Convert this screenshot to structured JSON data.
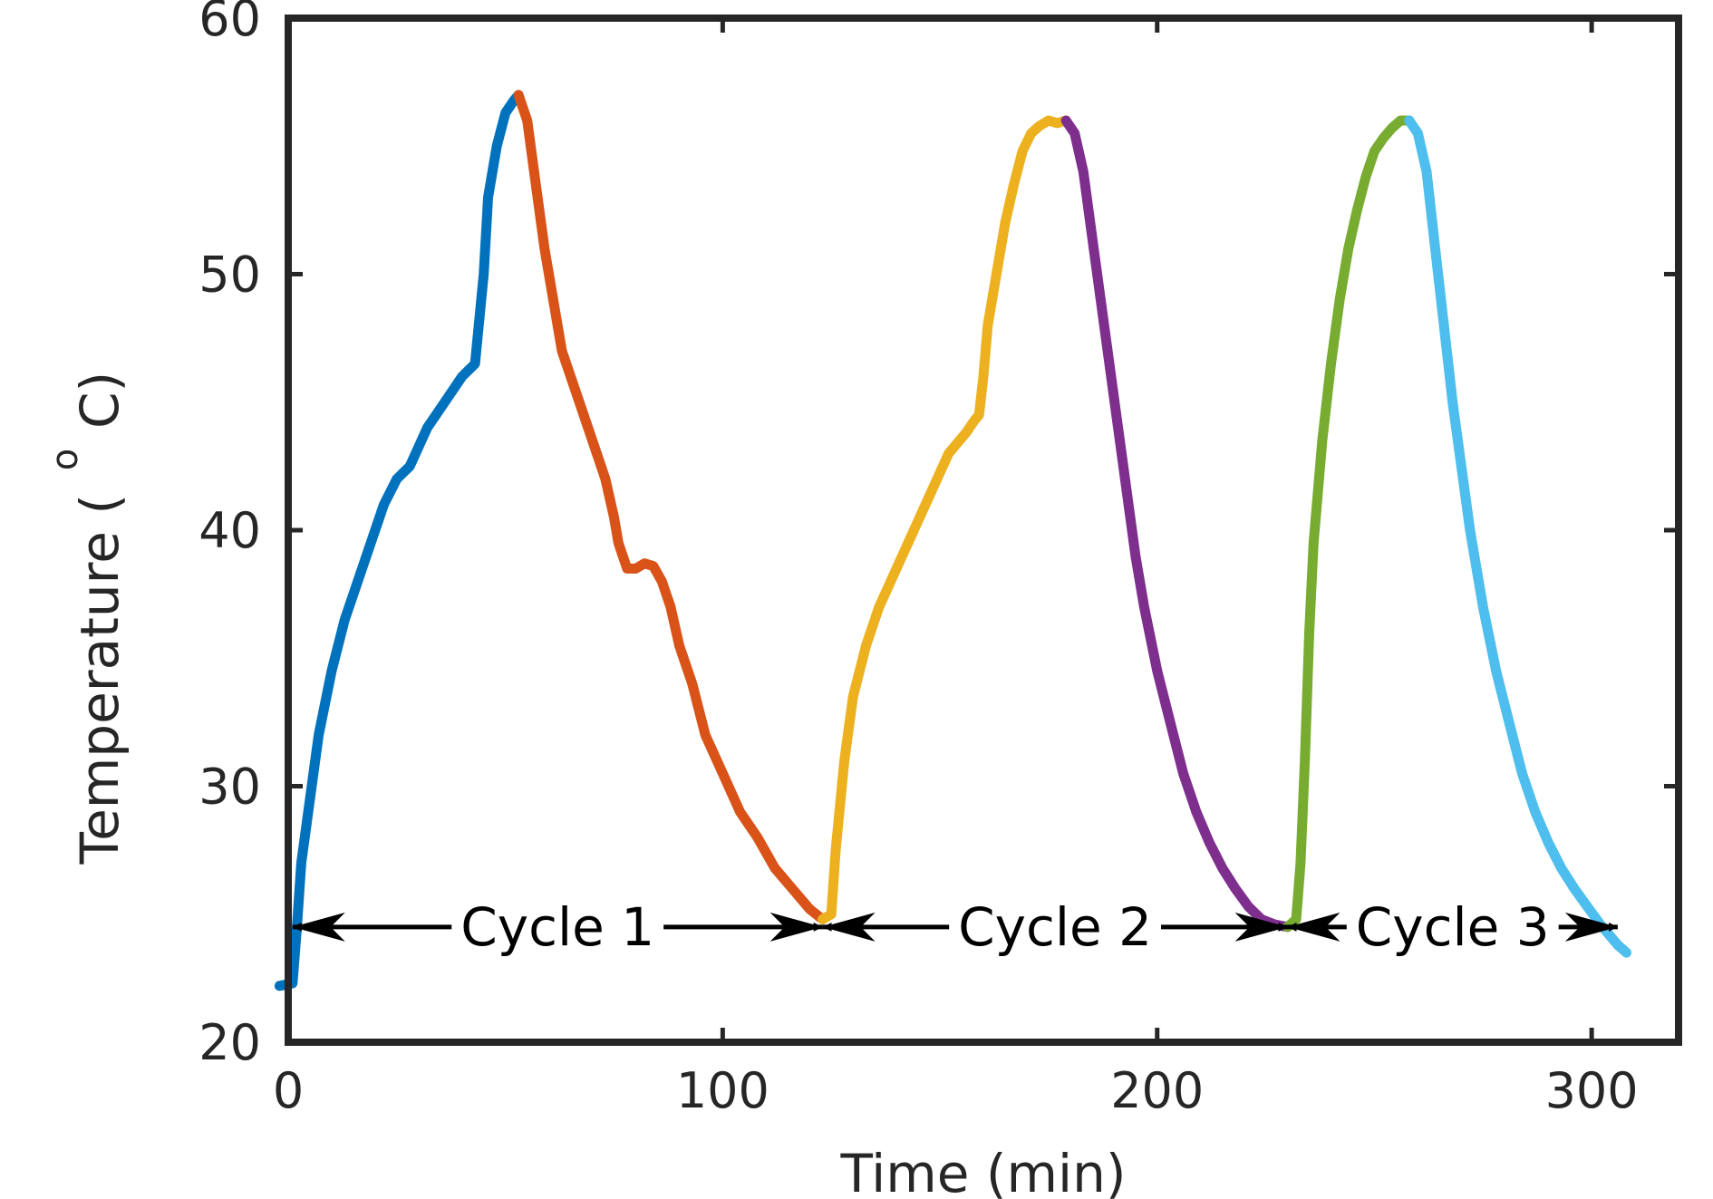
{
  "chart_data": {
    "type": "line",
    "title": "",
    "xlabel": "Time (min)",
    "ylabel_main": "Temperature (",
    "ylabel_sup": "o",
    "ylabel_end": "C)",
    "xlim": [
      0,
      320
    ],
    "ylim": [
      20,
      60
    ],
    "xticks": [
      0,
      100,
      200,
      300
    ],
    "yticks": [
      20,
      30,
      40,
      50,
      60
    ],
    "grid": false,
    "legend": "none",
    "series": [
      {
        "color": "#0072BD",
        "x": [
          -2,
          1,
          2,
          3,
          5,
          7,
          10,
          13,
          16,
          19,
          22,
          25,
          28,
          32,
          36,
          40,
          43,
          45,
          46,
          48,
          50,
          52,
          53
        ],
        "y": [
          22.2,
          22.3,
          24.5,
          27.0,
          29.5,
          32.0,
          34.5,
          36.5,
          38.0,
          39.5,
          41.0,
          42.0,
          42.5,
          44.0,
          45.0,
          46.0,
          46.5,
          50.0,
          53.0,
          55.0,
          56.3,
          56.8,
          57.0
        ]
      },
      {
        "color": "#D95319",
        "x": [
          53,
          55,
          57,
          59,
          61,
          63,
          65,
          68,
          71,
          73,
          75,
          76,
          77,
          78,
          80,
          82,
          84,
          86,
          88,
          90,
          93,
          96,
          100,
          104,
          108,
          112,
          116,
          120,
          123
        ],
        "y": [
          57.0,
          56.0,
          53.5,
          51.0,
          49.0,
          47.0,
          46.0,
          44.5,
          43.0,
          42.0,
          40.5,
          39.5,
          39.0,
          38.5,
          38.5,
          38.7,
          38.6,
          38.0,
          37.0,
          35.5,
          34.0,
          32.0,
          30.5,
          29.0,
          28.0,
          26.8,
          26.0,
          25.2,
          24.8
        ]
      },
      {
        "color": "#EDB120",
        "x": [
          123,
          125,
          126,
          128,
          130,
          133,
          136,
          140,
          144,
          148,
          152,
          156,
          158,
          159,
          160,
          161,
          163,
          165,
          167,
          169,
          171,
          173,
          175,
          177,
          179
        ],
        "y": [
          24.8,
          25.0,
          27.5,
          31.0,
          33.5,
          35.5,
          37.0,
          38.5,
          40.0,
          41.5,
          43.0,
          43.8,
          44.3,
          44.5,
          46.0,
          48.0,
          50.0,
          52.0,
          53.5,
          54.8,
          55.5,
          55.8,
          56.0,
          55.9,
          56.0
        ]
      },
      {
        "color": "#7E2F8E",
        "x": [
          179,
          181,
          183,
          185,
          187,
          189,
          191,
          193,
          195,
          197,
          200,
          203,
          206,
          209,
          212,
          215,
          218,
          221,
          224,
          227,
          230
        ],
        "y": [
          56.0,
          55.5,
          54.0,
          51.5,
          49.0,
          46.5,
          44.0,
          41.5,
          39.0,
          37.0,
          34.5,
          32.5,
          30.5,
          29.0,
          27.8,
          26.8,
          26.0,
          25.3,
          24.8,
          24.6,
          24.5
        ]
      },
      {
        "color": "#77AC30",
        "x": [
          230,
          232,
          233,
          234,
          235,
          236,
          238,
          240,
          242,
          244,
          246,
          248,
          250,
          252,
          254,
          256,
          258
        ],
        "y": [
          24.5,
          24.8,
          27.0,
          31.0,
          36.0,
          39.5,
          43.5,
          46.5,
          49.0,
          51.0,
          52.5,
          53.8,
          54.8,
          55.3,
          55.7,
          56.0,
          56.0
        ]
      },
      {
        "color": "#4DBEEE",
        "x": [
          258,
          260,
          262,
          264,
          266,
          268,
          270,
          272,
          275,
          278,
          281,
          284,
          287,
          290,
          293,
          296,
          299,
          302,
          304,
          306,
          308
        ],
        "y": [
          56.0,
          55.5,
          54.0,
          51.0,
          48.0,
          45.0,
          42.5,
          40.0,
          37.0,
          34.5,
          32.5,
          30.5,
          29.0,
          27.8,
          26.8,
          26.0,
          25.3,
          24.6,
          24.2,
          23.8,
          23.5
        ]
      }
    ],
    "annotations": [
      {
        "label": "Cycle 1",
        "x_start": 1,
        "x_end": 123,
        "y": 24.5
      },
      {
        "label": "Cycle 2",
        "x_start": 123,
        "x_end": 230,
        "y": 24.5
      },
      {
        "label": "Cycle 3",
        "x_start": 230,
        "x_end": 306,
        "y": 24.5
      }
    ]
  }
}
